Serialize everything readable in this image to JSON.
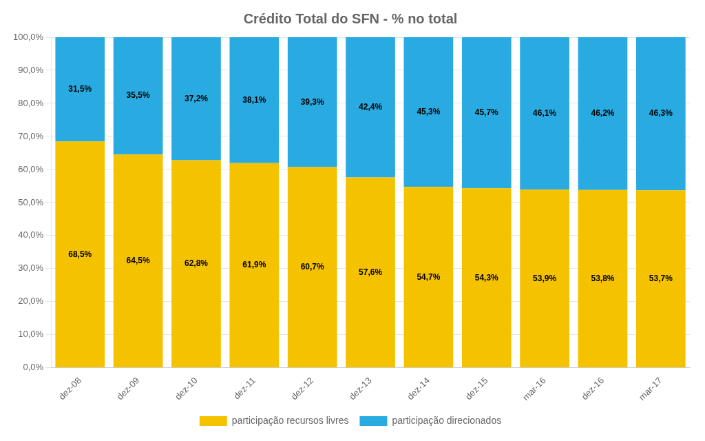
{
  "chart_data": {
    "type": "bar",
    "title": "Crédito Total do SFN - % no total",
    "categories": [
      "dez-08",
      "dez-09",
      "dez-10",
      "dez-11",
      "dez-12",
      "dez-13",
      "dez-14",
      "dez-15",
      "mar-16",
      "dez-16",
      "mar-17"
    ],
    "series": [
      {
        "name": "participação recursos livres",
        "color": "#F5C200",
        "values": [
          68.5,
          64.5,
          62.8,
          61.9,
          60.7,
          57.6,
          54.7,
          54.3,
          53.9,
          53.8,
          53.7
        ],
        "value_labels": [
          "68,5%",
          "64,5%",
          "62,8%",
          "61,9%",
          "60,7%",
          "57,6%",
          "54,7%",
          "54,3%",
          "53,9%",
          "53,8%",
          "53,7%"
        ]
      },
      {
        "name": "participação direcionados",
        "color": "#29ABE2",
        "values": [
          31.5,
          35.5,
          37.2,
          38.1,
          39.3,
          42.4,
          45.3,
          45.7,
          46.1,
          46.2,
          46.3
        ],
        "value_labels": [
          "31,5%",
          "35,5%",
          "37,2%",
          "38,1%",
          "39,3%",
          "42,4%",
          "45,3%",
          "45,7%",
          "46,1%",
          "46,2%",
          "46,3%"
        ]
      }
    ],
    "stacked": true,
    "data_labels": true,
    "ylim": [
      0,
      100
    ],
    "yticks": [
      {
        "value": 0,
        "label": "0,0%"
      },
      {
        "value": 10,
        "label": "10,0%"
      },
      {
        "value": 20,
        "label": "20,0%"
      },
      {
        "value": 30,
        "label": "30,0%"
      },
      {
        "value": 40,
        "label": "40,0%"
      },
      {
        "value": 50,
        "label": "50,0%"
      },
      {
        "value": 60,
        "label": "60,0%"
      },
      {
        "value": 70,
        "label": "70,0%"
      },
      {
        "value": 80,
        "label": "80,0%"
      },
      {
        "value": 90,
        "label": "90,0%"
      },
      {
        "value": 100,
        "label": "100,0%"
      }
    ],
    "grid": true,
    "legend": "bottom"
  }
}
